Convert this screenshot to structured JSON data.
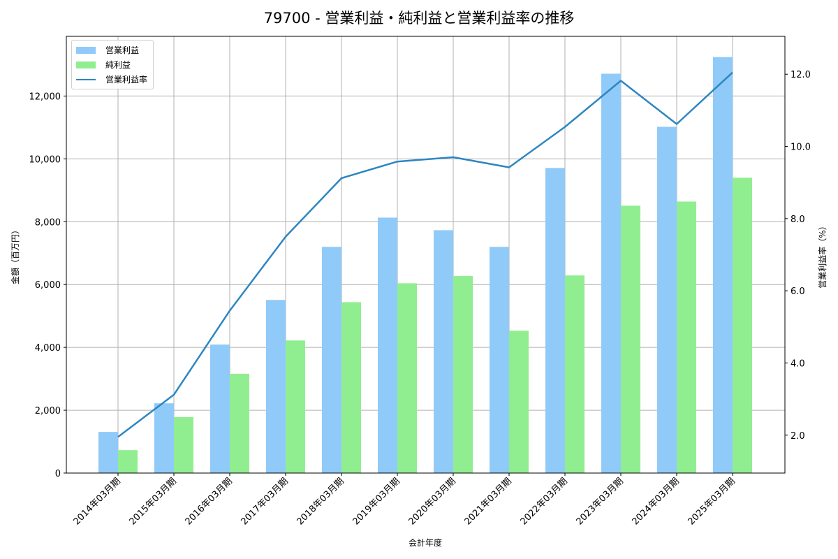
{
  "title": "79700 - 営業利益・純利益と営業利益率の推移",
  "legend": {
    "items": [
      {
        "label": "営業利益",
        "type": "bar",
        "color": "#90caf9"
      },
      {
        "label": "純利益",
        "type": "bar",
        "color": "#90ee90"
      },
      {
        "label": "営業利益率",
        "type": "line",
        "color": "#2e86c1"
      }
    ]
  },
  "axes": {
    "xlabel": "会計年度",
    "ylabel_left": "金額（百万円）",
    "ylabel_right": "営業利益率（%）",
    "left_ticks": [
      "0",
      "2,000",
      "4,000",
      "6,000",
      "8,000",
      "10,000",
      "12,000"
    ],
    "right_ticks": [
      "2.0",
      "4.0",
      "6.0",
      "8.0",
      "10.0",
      "12.0"
    ]
  },
  "chart_data": {
    "type": "bar",
    "title": "79700 - 営業利益・純利益と営業利益率の推移",
    "xlabel": "会計年度",
    "ylabel": "金額（百万円）",
    "ylabel_right": "営業利益率（%）",
    "categories": [
      "2014年03月期",
      "2015年03月期",
      "2016年03月期",
      "2017年03月期",
      "2018年03月期",
      "2019年03月期",
      "2020年03月期",
      "2021年03月期",
      "2022年03月期",
      "2023年03月期",
      "2024年03月期",
      "2025年03月期"
    ],
    "series": [
      {
        "name": "営業利益",
        "type": "bar",
        "axis": "left",
        "color": "#90caf9",
        "values": [
          1310,
          2220,
          4090,
          5510,
          7200,
          8130,
          7730,
          7200,
          9710,
          12710,
          11020,
          13240
        ]
      },
      {
        "name": "純利益",
        "type": "bar",
        "axis": "left",
        "color": "#90ee90",
        "values": [
          730,
          1780,
          3160,
          4220,
          5440,
          6040,
          6270,
          4530,
          6290,
          8510,
          8640,
          9400
        ]
      },
      {
        "name": "営業利益率",
        "type": "line",
        "axis": "right",
        "color": "#2e86c1",
        "values": [
          1.95,
          3.12,
          5.45,
          7.5,
          9.12,
          9.58,
          9.7,
          9.42,
          10.54,
          11.82,
          10.62,
          12.05
        ]
      }
    ],
    "ylim": [
      0,
      13900
    ],
    "ylim_right": [
      0.95,
      13.05
    ],
    "grid": true,
    "legend_position": "upper left"
  }
}
